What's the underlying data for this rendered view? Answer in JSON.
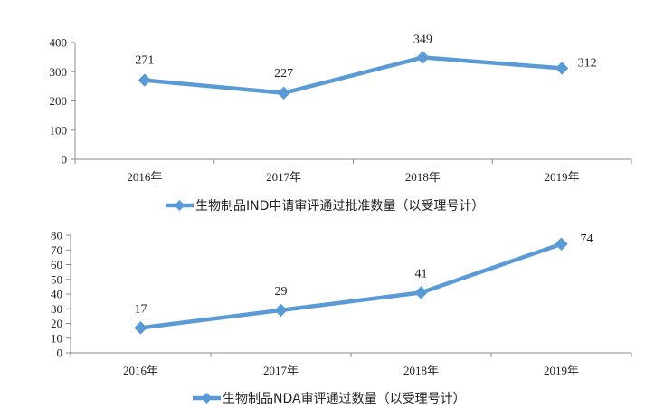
{
  "chart_data": [
    {
      "type": "line",
      "categories": [
        "2016年",
        "2017年",
        "2018年",
        "2019年"
      ],
      "series": [
        {
          "name": "生物制品IND申请审评通过批准数量（以受理号计）",
          "values": [
            271,
            227,
            349,
            312
          ],
          "color": "#5b9bd5"
        }
      ],
      "ylim": [
        0,
        400
      ],
      "yticks": [
        0,
        100,
        200,
        300,
        400
      ],
      "grid": false,
      "legend": "bottom"
    },
    {
      "type": "line",
      "categories": [
        "2016年",
        "2017年",
        "2018年",
        "2019年"
      ],
      "series": [
        {
          "name": "生物制品NDA审评通过数量（以受理号计）",
          "values": [
            17,
            29,
            41,
            74
          ],
          "color": "#5b9bd5"
        }
      ],
      "ylim": [
        0,
        80
      ],
      "yticks": [
        0,
        10,
        20,
        30,
        40,
        50,
        60,
        70,
        80
      ],
      "grid": false,
      "legend": "bottom"
    }
  ]
}
